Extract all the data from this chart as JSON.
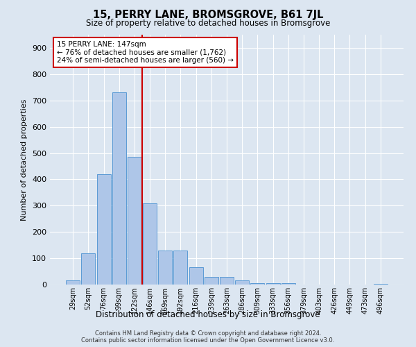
{
  "title": "15, PERRY LANE, BROMSGROVE, B61 7JL",
  "subtitle": "Size of property relative to detached houses in Bromsgrove",
  "xlabel": "Distribution of detached houses by size in Bromsgrove",
  "ylabel": "Number of detached properties",
  "categories": [
    "29sqm",
    "52sqm",
    "76sqm",
    "99sqm",
    "122sqm",
    "146sqm",
    "169sqm",
    "192sqm",
    "216sqm",
    "239sqm",
    "263sqm",
    "286sqm",
    "309sqm",
    "333sqm",
    "356sqm",
    "379sqm",
    "403sqm",
    "426sqm",
    "449sqm",
    "473sqm",
    "496sqm"
  ],
  "values": [
    15,
    120,
    420,
    730,
    485,
    310,
    130,
    130,
    65,
    30,
    30,
    15,
    5,
    5,
    5,
    0,
    0,
    0,
    0,
    0,
    2
  ],
  "bar_color": "#aec6e8",
  "bar_edge_color": "#5b9bd5",
  "red_line_index": 5,
  "annotation_line1": "15 PERRY LANE: 147sqm",
  "annotation_line2": "← 76% of detached houses are smaller (1,762)",
  "annotation_line3": "24% of semi-detached houses are larger (560) →",
  "annotation_box_color": "#ffffff",
  "annotation_box_edge_color": "#cc0000",
  "red_line_color": "#cc0000",
  "ylim": [
    0,
    950
  ],
  "yticks": [
    0,
    100,
    200,
    300,
    400,
    500,
    600,
    700,
    800,
    900
  ],
  "background_color": "#dce6f1",
  "plot_bg_color": "#dce6f1",
  "grid_color": "#ffffff",
  "footer1": "Contains HM Land Registry data © Crown copyright and database right 2024.",
  "footer2": "Contains public sector information licensed under the Open Government Licence v3.0."
}
